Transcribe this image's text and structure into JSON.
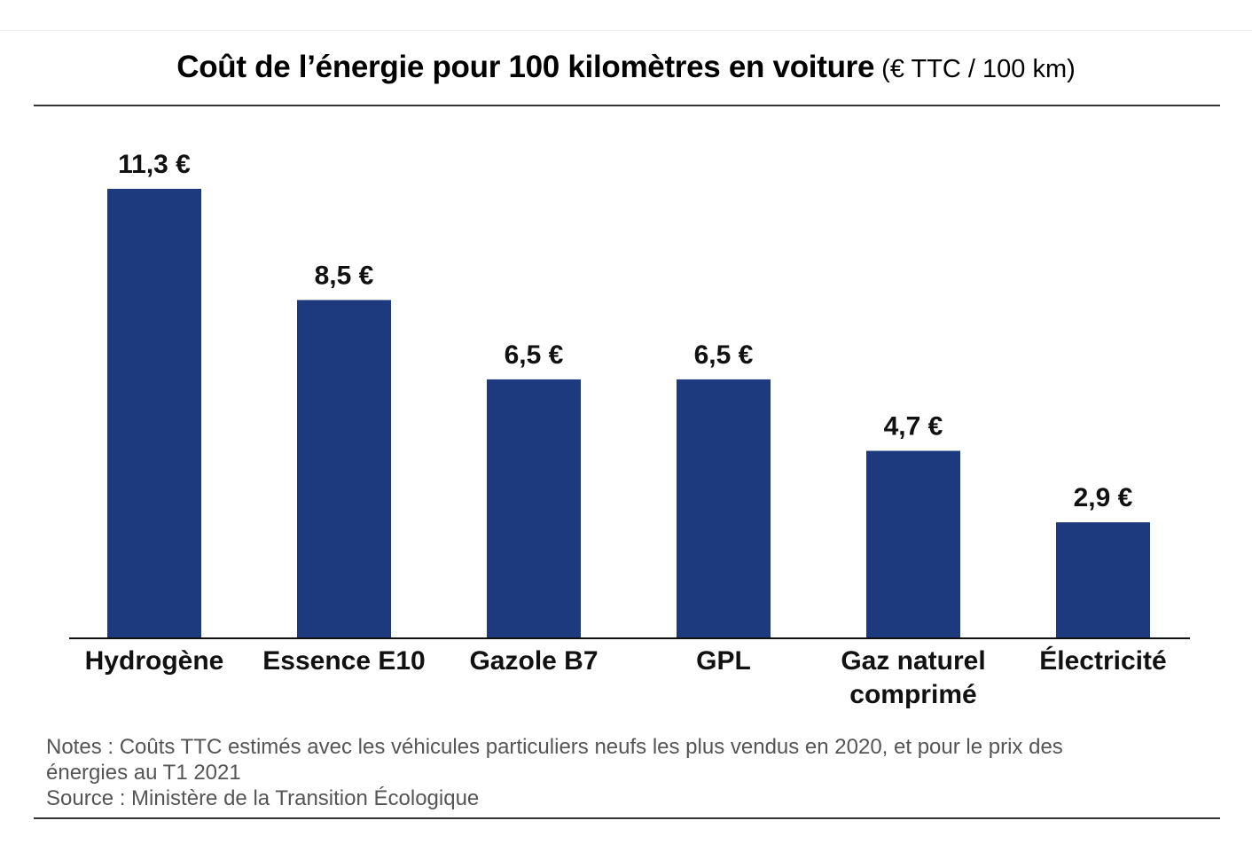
{
  "title": "Coût de l’énergie pour 100 kilomètres en voiture",
  "title_unit": "(€ TTC / 100 km)",
  "chart_data": {
    "type": "bar",
    "title": "Coût de l’énergie pour 100 kilomètres en voiture",
    "subtitle": "(€ TTC / 100 km)",
    "categories": [
      [
        "Hydrogène"
      ],
      [
        "Essence E10"
      ],
      [
        "Gazole B7"
      ],
      [
        "GPL"
      ],
      [
        "Gaz naturel",
        "comprimé"
      ],
      [
        "Électricité"
      ]
    ],
    "values": [
      11.3,
      8.5,
      6.5,
      6.5,
      4.7,
      2.9
    ],
    "value_labels": [
      "11,3 €",
      "8,5 €",
      "6,5 €",
      "6,5 €",
      "4,7 €",
      "2,9 €"
    ],
    "bar_color": "#1d3a7f",
    "ylim": [
      0,
      11.3
    ],
    "grid": false,
    "legend": "none"
  },
  "notes": {
    "line1": "Notes : Coûts TTC estimés avec les véhicules particuliers neufs les plus vendus en 2020, et pour le prix des",
    "line2": "énergies au T1 2021",
    "source": "Source : Ministère de la Transition Écologique"
  }
}
